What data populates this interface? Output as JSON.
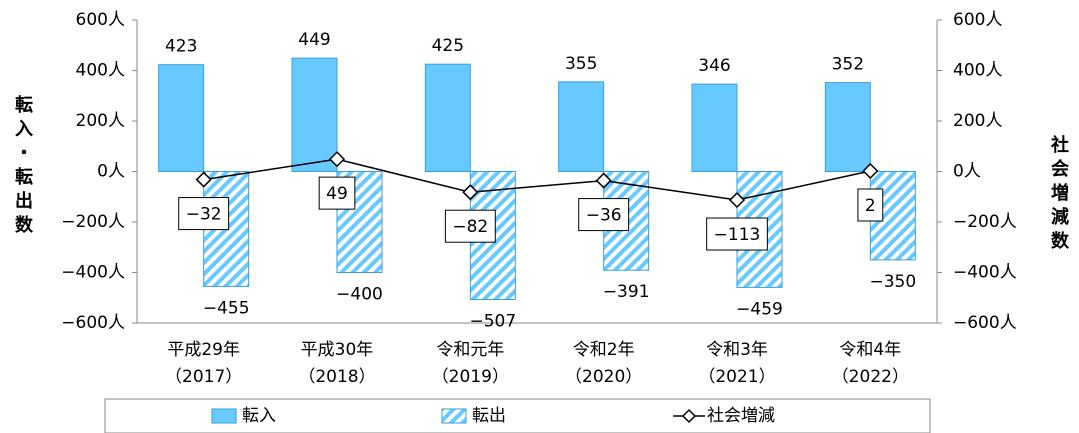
{
  "chart_data": {
    "type": "bar",
    "y_label": "転入・転出数",
    "y2_label": "社会増減数",
    "categories": [
      [
        "平成29年",
        "（2017）"
      ],
      [
        "平成30年",
        "（2018）"
      ],
      [
        "令和元年",
        "（2019）"
      ],
      [
        "令和2年",
        "（2020）"
      ],
      [
        "令和3年",
        "（2021）"
      ],
      [
        "令和4年",
        "（2022）"
      ]
    ],
    "series": [
      {
        "name": "転入",
        "type": "bar",
        "color": "#66c9ff",
        "values": [
          423,
          449,
          425,
          355,
          346,
          352
        ]
      },
      {
        "name": "転出",
        "type": "bar",
        "color": "#66c9ff",
        "hatch": true,
        "values": [
          -455,
          -400,
          -507,
          -391,
          -459,
          -350
        ],
        "value_labels": [
          "−455",
          "−400",
          "−507",
          "−391",
          "−459",
          "−350"
        ]
      },
      {
        "name": "社会増減",
        "type": "line",
        "axis": "y2",
        "color": "#000000",
        "values": [
          -32,
          49,
          -82,
          -36,
          -113,
          2
        ],
        "value_labels": [
          "−32",
          "49",
          "−82",
          "−36",
          "−113",
          "2"
        ]
      }
    ],
    "ylim": [
      -600,
      600
    ],
    "yticks": [
      {
        "value": -600,
        "label": "−600人"
      },
      {
        "value": -400,
        "label": "−400人"
      },
      {
        "value": -200,
        "label": "−200人"
      },
      {
        "value": 0,
        "label": "0人"
      },
      {
        "value": 200,
        "label": "200人"
      },
      {
        "value": 400,
        "label": "400人"
      },
      {
        "value": 600,
        "label": "600人"
      }
    ],
    "y2lim": [
      -600,
      600
    ],
    "y2ticks": [
      {
        "value": -600,
        "label": "−600人"
      },
      {
        "value": -400,
        "label": "−400人"
      },
      {
        "value": -200,
        "label": "−200人"
      },
      {
        "value": 0,
        "label": "0人"
      },
      {
        "value": 200,
        "label": "200人"
      },
      {
        "value": 400,
        "label": "400人"
      },
      {
        "value": 600,
        "label": "600人"
      }
    ],
    "grid": false,
    "legend": "bottom"
  }
}
